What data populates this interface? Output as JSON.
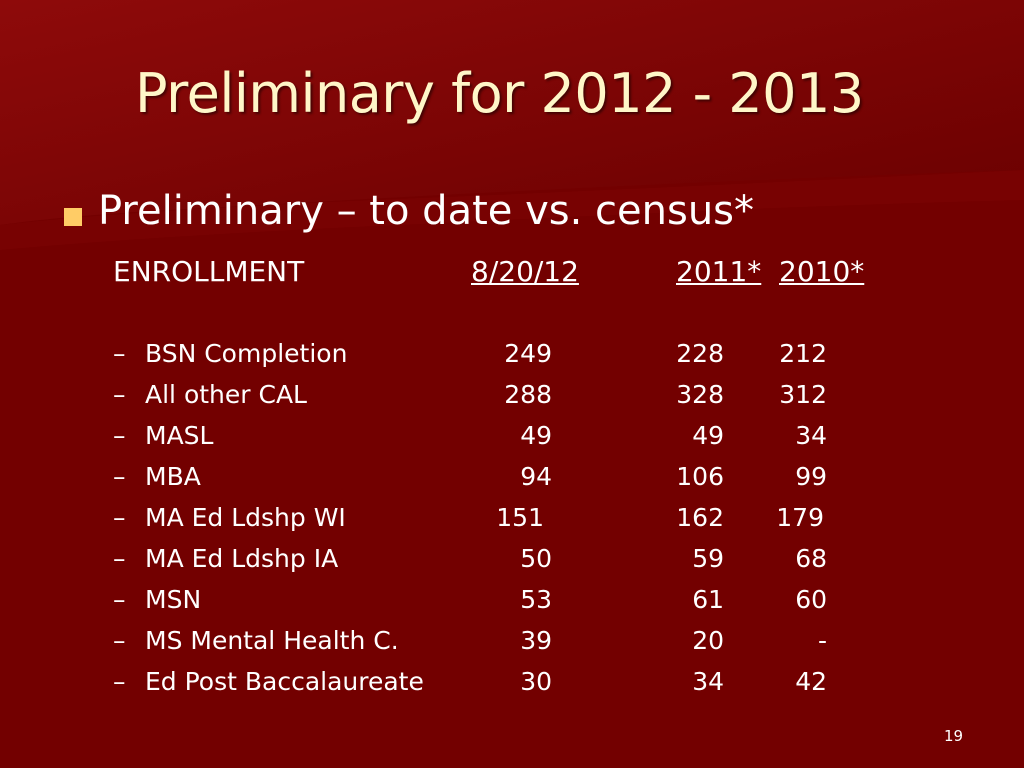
{
  "slide": {
    "title": "Preliminary for 2012 - 2013",
    "bullet": "Preliminary  – to date vs. census*",
    "headers": {
      "enrollment": "ENROLLMENT",
      "col1": "8/20/12",
      "col2": "2011*",
      "col3": "2010*"
    },
    "dash": "–",
    "rows": [
      {
        "label": "BSN Completion",
        "v1": "249",
        "v2": "228",
        "v3": "212"
      },
      {
        "label": "All other  CAL",
        "v1": "288",
        "v2": "328",
        "v3": "312"
      },
      {
        "label": "MASL",
        "v1": "49",
        "v2": "49",
        "v3": "34"
      },
      {
        "label": "MBA",
        "v1": "94",
        "v2": "106",
        "v3": "99"
      },
      {
        "label": "MA  Ed Ldshp  WI",
        "v1": "151",
        "v2": "162",
        "v3": "179"
      },
      {
        "label": "MA  Ed Ldshp  IA",
        "v1": "50",
        "v2": "59",
        "v3": "68"
      },
      {
        "label": "MSN",
        "v1": "53",
        "v2": "61",
        "v3": "60"
      },
      {
        "label": "MS Mental Health C.",
        "v1": "39",
        "v2": "20",
        "v3": "-"
      },
      {
        "label": "Ed Post Baccalaureate",
        "v1": "30",
        "v2": "34",
        "v3": "42"
      }
    ],
    "page_number": "19"
  },
  "colors": {
    "background": "#740000",
    "title": "#fff6c8",
    "bullet": "#ffcc66",
    "text": "#ffffff"
  }
}
